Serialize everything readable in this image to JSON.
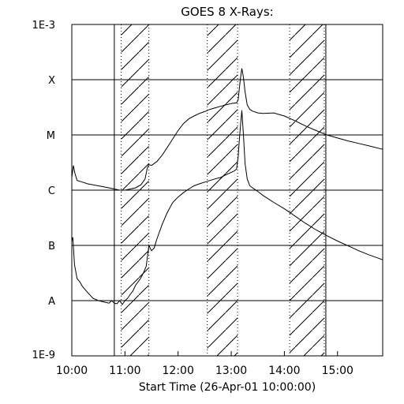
{
  "chart_data": {
    "type": "line",
    "title": "GOES 8 X-Rays:",
    "xlabel": "Start Time (26-Apr-01 10:00:00)",
    "ylabel": "",
    "yscale": "log",
    "xlim_hours": [
      10.0,
      15.85
    ],
    "ylim": [
      1e-09,
      0.001
    ],
    "x_ticks": [
      {
        "value": 10,
        "label": "10:00"
      },
      {
        "value": 11,
        "label": "11:00"
      },
      {
        "value": 12,
        "label": "12:00"
      },
      {
        "value": 13,
        "label": "13:00"
      },
      {
        "value": 14,
        "label": "14:00"
      },
      {
        "value": 15,
        "label": "15:00"
      }
    ],
    "y_labels": [
      {
        "value": 0.001,
        "label": "1E-3"
      },
      {
        "value": 0.0001,
        "label": "X"
      },
      {
        "value": 1e-05,
        "label": "M"
      },
      {
        "value": 1e-06,
        "label": "C"
      },
      {
        "value": 1e-07,
        "label": "B"
      },
      {
        "value": 1e-08,
        "label": "A"
      },
      {
        "value": 1e-09,
        "label": "1E-9"
      }
    ],
    "horizontal_lines": [
      0.0001,
      1e-05,
      1e-06,
      1e-07,
      1e-08
    ],
    "night_intervals_hours": [
      [
        10.93,
        11.45
      ],
      [
        12.55,
        13.12
      ],
      [
        14.1,
        14.75
      ]
    ],
    "vertical_solid_lines_hours": [
      10.8,
      14.78
    ],
    "grid": false,
    "series": [
      {
        "x": [
          10.0,
          10.03,
          10.06,
          10.1,
          10.2,
          10.3,
          10.4,
          10.5,
          10.6,
          10.7,
          10.8,
          10.9,
          11.0,
          11.1,
          11.2,
          11.3,
          11.38,
          11.42,
          11.45,
          11.5,
          11.6,
          11.7,
          11.8,
          11.9,
          12.0,
          12.1,
          12.2,
          12.3,
          12.4,
          12.5,
          12.6,
          12.7,
          12.8,
          12.9,
          13.0,
          13.05,
          13.1,
          13.13,
          13.17,
          13.2,
          13.23,
          13.26,
          13.3,
          13.35,
          13.4,
          13.5,
          13.6,
          13.8,
          14.0,
          14.2,
          14.4,
          14.6,
          14.8,
          15.0,
          15.2,
          15.4,
          15.6,
          15.85
        ],
        "y": [
          1.7e-06,
          2.8e-06,
          2e-06,
          1.5e-06,
          1.4e-06,
          1.3e-06,
          1.25e-06,
          1.2e-06,
          1.15e-06,
          1.1e-06,
          1.05e-06,
          1e-06,
          1e-06,
          1.05e-06,
          1.1e-06,
          1.25e-06,
          1.6e-06,
          2.5e-06,
          2.9e-06,
          2.8e-06,
          3.3e-06,
          4.3e-06,
          6e-06,
          8.5e-06,
          1.2e-05,
          1.6e-05,
          1.95e-05,
          2.2e-05,
          2.45e-05,
          2.65e-05,
          2.9e-05,
          3.1e-05,
          3.3e-05,
          3.5e-05,
          3.7e-05,
          3.75e-05,
          3.8e-05,
          4.3e-05,
          0.0001,
          0.00016,
          0.00011,
          6e-05,
          3.5e-05,
          2.9e-05,
          2.7e-05,
          2.5e-05,
          2.45e-05,
          2.5e-05,
          2.2e-05,
          1.8e-05,
          1.45e-05,
          1.2e-05,
          1e-05,
          8.8e-06,
          7.8e-06,
          7e-06,
          6.3e-06,
          5.5e-06
        ]
      },
      {
        "x": [
          10.0,
          10.02,
          10.05,
          10.1,
          10.15,
          10.2,
          10.3,
          10.4,
          10.5,
          10.6,
          10.7,
          10.75,
          10.8,
          10.85,
          10.9,
          10.95,
          11.0,
          11.05,
          11.1,
          11.15,
          11.2,
          11.25,
          11.3,
          11.35,
          11.4,
          11.45,
          11.5,
          11.55,
          11.6,
          11.7,
          11.8,
          11.9,
          12.0,
          12.1,
          12.2,
          12.3,
          12.4,
          12.5,
          12.6,
          12.7,
          12.8,
          12.9,
          13.0,
          13.05,
          13.1,
          13.13,
          13.16,
          13.2,
          13.23,
          13.26,
          13.3,
          13.35,
          13.4,
          13.5,
          13.6,
          13.8,
          14.0,
          14.2,
          14.4,
          14.6,
          14.8,
          15.0,
          15.2,
          15.4,
          15.6,
          15.85
        ],
        "y": [
          1.2e-07,
          1.4e-07,
          4.5e-08,
          2.5e-08,
          2.2e-08,
          1.8e-08,
          1.4e-08,
          1.1e-08,
          1e-08,
          9.5e-09,
          9e-09,
          1e-08,
          9e-09,
          8.8e-09,
          1e-08,
          8.5e-09,
          1e-08,
          1.1e-08,
          1.3e-08,
          1.5e-08,
          1.9e-08,
          2.2e-08,
          2.6e-08,
          3.2e-08,
          4.2e-08,
          1e-07,
          8e-08,
          9e-08,
          1.3e-07,
          2.4e-07,
          4e-07,
          6e-07,
          7.5e-07,
          9e-07,
          1.05e-06,
          1.2e-06,
          1.3e-06,
          1.4e-06,
          1.5e-06,
          1.6e-06,
          1.7e-06,
          1.9e-06,
          2.1e-06,
          2.2e-06,
          2.4e-06,
          4e-06,
          1e-05,
          2.8e-05,
          1e-05,
          3e-06,
          1.6e-06,
          1.2e-06,
          1.1e-06,
          9.5e-07,
          8e-07,
          6e-07,
          4.6e-07,
          3.4e-07,
          2.5e-07,
          1.9e-07,
          1.5e-07,
          1.2e-07,
          9.8e-08,
          8e-08,
          6.7e-08,
          5.5e-08
        ]
      }
    ]
  }
}
